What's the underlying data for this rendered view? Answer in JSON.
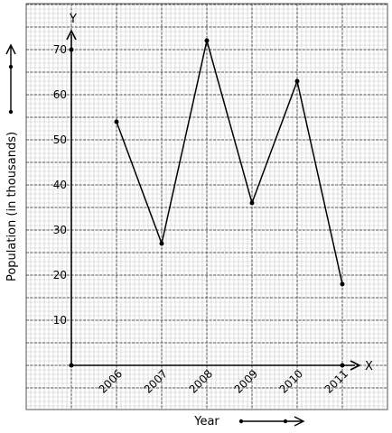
{
  "chart_data": {
    "type": "line",
    "title": "",
    "xlabel": "Year",
    "ylabel": "Population (in thousands)",
    "x_axis_letter": "X",
    "y_axis_letter": "Y",
    "categories": [
      "2006",
      "2007",
      "2008",
      "2009",
      "2010",
      "2011"
    ],
    "series": [
      {
        "values": [
          54,
          27,
          72,
          36,
          63,
          18
        ]
      }
    ],
    "yticks": [
      "10",
      "20",
      "30",
      "40",
      "50",
      "60",
      "70"
    ],
    "ylim": [
      0,
      80
    ],
    "grid": true,
    "colors": {
      "line": "#000000",
      "grid_minor": "#c8c8c8",
      "grid_major": "#555555",
      "background": "#ffffff"
    }
  }
}
